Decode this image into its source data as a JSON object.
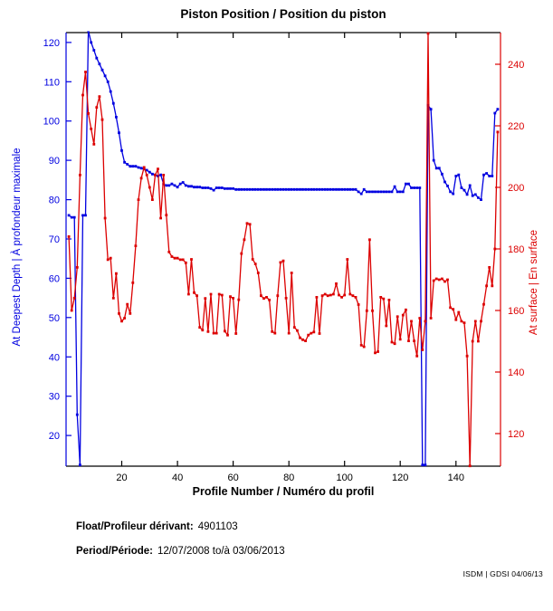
{
  "title": "Piston Position / Position du piston",
  "footer": {
    "float_label": "Float/Profileur dérivant:",
    "float_value": "4901103",
    "period_label": "Period/Période:",
    "period_value": "12/07/2008 to/à 03/06/2013",
    "credit": "ISDM | GDSI 04/06/13"
  },
  "chart_data": {
    "type": "line",
    "title": "Piston Position / Position du piston",
    "xlabel": "Profile Number / Numéro du profil",
    "ylabel_left": "At Deepest Depth | À profondeur maximale",
    "ylabel_right": "At surface | En surface",
    "legend": "none",
    "grid": false,
    "marker": "square",
    "xlim": [
      0,
      156
    ],
    "ylim_left": [
      12.2,
      122.5
    ],
    "ylim_right": [
      109.4,
      250.3
    ],
    "xticks": [
      20,
      40,
      60,
      80,
      100,
      120,
      140
    ],
    "yticks_left": [
      20,
      30,
      40,
      50,
      60,
      70,
      80,
      90,
      100,
      110,
      120
    ],
    "yticks_right": [
      120,
      140,
      160,
      180,
      200,
      220,
      240
    ],
    "colors": {
      "left_axis": "#0000E0",
      "right_axis": "#DC0000",
      "box": "#000000"
    },
    "x_start": 1,
    "x_step": 1,
    "n_points": 155,
    "series": [
      {
        "name": "At Deepest Depth | À profondeur maximale",
        "axis": "left",
        "color": "#0000E0",
        "values": [
          76,
          75.5,
          75.5,
          25.3,
          12.5,
          76,
          76,
          123,
          120,
          118,
          116,
          114.5,
          113,
          111.5,
          110,
          107.5,
          104.5,
          101,
          97,
          92.5,
          89.5,
          89,
          88.5,
          88.5,
          88.5,
          88.2,
          88,
          87.8,
          87.5,
          87,
          86.5,
          86.3,
          86,
          86.3,
          84,
          83.6,
          83.6,
          84,
          83.6,
          83.2,
          84,
          84.4,
          83.6,
          83.4,
          83.4,
          83.2,
          83.2,
          83.2,
          83,
          83,
          83,
          82.8,
          82.4,
          83,
          83,
          83,
          82.8,
          82.8,
          82.8,
          82.8,
          82.6,
          82.6,
          82.6,
          82.6,
          82.6,
          82.6,
          82.6,
          82.6,
          82.6,
          82.6,
          82.6,
          82.6,
          82.6,
          82.6,
          82.6,
          82.6,
          82.6,
          82.6,
          82.6,
          82.6,
          82.6,
          82.6,
          82.6,
          82.6,
          82.6,
          82.6,
          82.6,
          82.6,
          82.6,
          82.6,
          82.6,
          82.6,
          82.6,
          82.6,
          82.6,
          82.6,
          82.6,
          82.6,
          82.6,
          82.6,
          82.6,
          82.6,
          82.6,
          82.6,
          82,
          81.5,
          82.6,
          82,
          82,
          82,
          82,
          82,
          82,
          82,
          82,
          82,
          82,
          83.3,
          82,
          82,
          82,
          84,
          84,
          83,
          83,
          83,
          83,
          12.5,
          12.5,
          104,
          103,
          90,
          88,
          88,
          86.5,
          84.5,
          83.5,
          82,
          81.5,
          86,
          86.3,
          83,
          82.4,
          81.3,
          83.6,
          81,
          81.3,
          80.5,
          80,
          86.3,
          86.7,
          86,
          86,
          102,
          103
        ]
      },
      {
        "name": "At surface | En surface",
        "axis": "right",
        "color": "#DC0000",
        "values": [
          184,
          160,
          164,
          174,
          204,
          230,
          237.5,
          224,
          219,
          214,
          226,
          229.5,
          222,
          190,
          176.5,
          177,
          164,
          172,
          159,
          156.5,
          157.5,
          162,
          159,
          169,
          181,
          196,
          203,
          206.5,
          204,
          200,
          196,
          204,
          206,
          190,
          204,
          191,
          179,
          177.5,
          177,
          177,
          176.5,
          176.5,
          175.5,
          165.3,
          176.6,
          165.8,
          164.8,
          154.5,
          153.6,
          163.9,
          153.1,
          165.3,
          152.6,
          152.6,
          165.3,
          165,
          153.3,
          152,
          164.5,
          164,
          152.5,
          163.5,
          178.5,
          183,
          188.3,
          188,
          176.6,
          175.1,
          172.2,
          164.8,
          163.9,
          164.3,
          163.4,
          153.1,
          152.6,
          164.8,
          175.6,
          176.1,
          164,
          152.6,
          172.2,
          154.5,
          153.5,
          151.1,
          150.5,
          150.1,
          152,
          152.6,
          153,
          164.3,
          152.5,
          164.8,
          165.3,
          164.8,
          165,
          165.3,
          168.7,
          165,
          164.3,
          165,
          176.6,
          165.3,
          164.8,
          164.3,
          161.9,
          148.7,
          148.2,
          159.9,
          183,
          159.9,
          146.2,
          146.6,
          164.3,
          163.8,
          155,
          163.4,
          149.7,
          149.2,
          158,
          150.6,
          158.5,
          160.2,
          150.1,
          156.5,
          150.1,
          145.2,
          157.5,
          147.2,
          156.5,
          250,
          157.5,
          169.7,
          170.3,
          170,
          170.3,
          169.4,
          170,
          160.9,
          160.4,
          157,
          159.4,
          156.5,
          156,
          145.2,
          109.5,
          150,
          156.5,
          150,
          156.5,
          162,
          168,
          174,
          168,
          180,
          218
        ]
      }
    ]
  }
}
